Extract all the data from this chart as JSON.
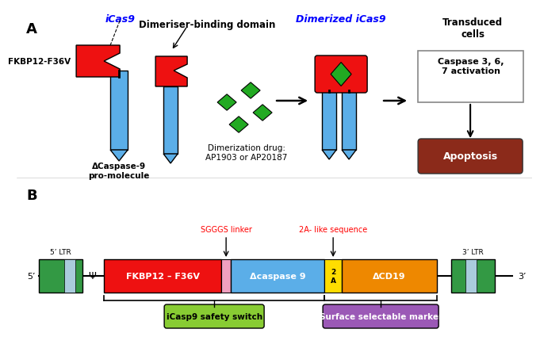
{
  "panel_A_label": "A",
  "panel_B_label": "B",
  "icas9_label": "iCas9",
  "dimerized_label": "Dimerized iCas9",
  "dimeriser_binding": "Dimeriser-binding domain",
  "fkbp_label": "FKBP12-F36V",
  "dcaspase_label": "ΔCaspase-9\npro-molecule",
  "dimerization_drug": "Dimerization drug:\nAP1903 or AP20187",
  "transduced_cells": "Transduced\ncells",
  "caspase_activation": "Caspase 3, 6,\n7 activation",
  "apoptosis": "Apoptosis",
  "sgggs_linker": "SGGGS linker",
  "two_a_sequence": "2A- like sequence",
  "five_ltr": "5’ LTR",
  "three_ltr": "3’ LTR",
  "psi": "Ψ",
  "fkbp12_text": "FKBP12 – F36V",
  "dcaspase9_text": "Δcaspase 9",
  "two_a_text": "2\nA",
  "dcd19_text": "ΔCD19",
  "icasp9_switch": "iCasp9 safety switch",
  "surface_marker": "Surface selectable marker",
  "five_prime": "5’",
  "three_prime": "3’",
  "color_red": "#EE1111",
  "color_blue": "#5BAEE8",
  "color_green": "#22AA22",
  "color_dark_green": "#339944",
  "color_orange": "#EE8800",
  "color_yellow": "#FFDD00",
  "color_pink": "#F0A0C0",
  "color_brown": "#8B2A1A",
  "color_purple": "#9B59B6",
  "color_lime": "#88CC33",
  "color_light_blue": "#AACCDD",
  "color_stem_blue": "#5BAEE8"
}
